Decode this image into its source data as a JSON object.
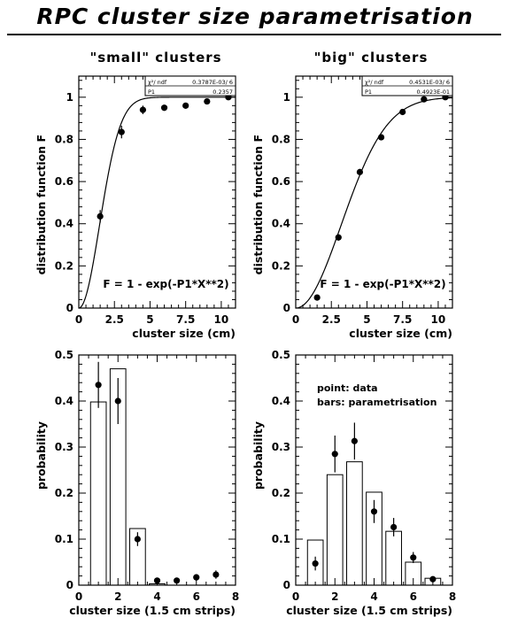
{
  "page": {
    "title": "RPC cluster size parametrisation"
  },
  "chart_data": [
    {
      "type": "scatter",
      "column_title": "\"small\" clusters",
      "xlabel": "cluster size (cm)",
      "ylabel": "distribution function F",
      "xlim": [
        0,
        11
      ],
      "ylim": [
        0,
        1.1
      ],
      "xticks": [
        0,
        2.5,
        5,
        7.5,
        10
      ],
      "xtick_labels": [
        "0",
        "2.5",
        "5",
        "7.5",
        "10"
      ],
      "yticks": [
        0,
        0.2,
        0.4,
        0.6,
        0.8,
        1
      ],
      "ytick_labels": [
        "0",
        "0.2",
        "0.4",
        "0.6",
        "0.8",
        "1"
      ],
      "formula": "F = 1 - exp(-P1*X**2)",
      "fit_P1": 0.2357,
      "stats": {
        "row1_label": "χ²/ ndf",
        "row1_value": "0.3787E-03/ 6",
        "row2_label": "P1",
        "row2_value": "0.2357"
      },
      "points": [
        {
          "x": 1.5,
          "y": 0.435,
          "err": 0.03
        },
        {
          "x": 3.0,
          "y": 0.835,
          "err": 0.03
        },
        {
          "x": 4.5,
          "y": 0.94,
          "err": 0.02
        },
        {
          "x": 6.0,
          "y": 0.95,
          "err": 0.012
        },
        {
          "x": 7.5,
          "y": 0.96,
          "err": 0.01
        },
        {
          "x": 9.0,
          "y": 0.98,
          "err": 0.01
        },
        {
          "x": 10.5,
          "y": 1.0,
          "err": 0.01
        }
      ]
    },
    {
      "type": "scatter",
      "column_title": "\"big\" clusters",
      "xlabel": "cluster size (cm)",
      "ylabel": "distribution function F",
      "xlim": [
        0,
        11
      ],
      "ylim": [
        0,
        1.1
      ],
      "xticks": [
        0,
        2.5,
        5,
        7.5,
        10
      ],
      "xtick_labels": [
        "0",
        "2.5",
        "5",
        "7.5",
        "10"
      ],
      "yticks": [
        0,
        0.2,
        0.4,
        0.6,
        0.8,
        1
      ],
      "ytick_labels": [
        "0",
        "0.2",
        "0.4",
        "0.6",
        "0.8",
        "1"
      ],
      "formula": "F = 1 - exp(-P1*X**2)",
      "fit_P1": 0.04923,
      "stats": {
        "row1_label": "χ²/ ndf",
        "row1_value": "0.4531E-03/ 6",
        "row2_label": "P1",
        "row2_value": "0.4923E-01"
      },
      "points": [
        {
          "x": 1.5,
          "y": 0.05,
          "err": 0.008
        },
        {
          "x": 3.0,
          "y": 0.335,
          "err": 0.015
        },
        {
          "x": 4.5,
          "y": 0.645,
          "err": 0.015
        },
        {
          "x": 6.0,
          "y": 0.81,
          "err": 0.012
        },
        {
          "x": 7.5,
          "y": 0.93,
          "err": 0.01
        },
        {
          "x": 9.0,
          "y": 0.99,
          "err": 0.008
        },
        {
          "x": 10.5,
          "y": 1.0,
          "err": 0.006
        }
      ]
    },
    {
      "type": "bar",
      "xlabel": "cluster size (1.5 cm strips)",
      "ylabel": "probability",
      "xlim": [
        0,
        8
      ],
      "ylim": [
        0,
        0.5
      ],
      "xticks": [
        0,
        2,
        4,
        6,
        8
      ],
      "xtick_labels": [
        "0",
        "2",
        "4",
        "6",
        "8"
      ],
      "yticks": [
        0,
        0.1,
        0.2,
        0.3,
        0.4,
        0.5
      ],
      "ytick_labels": [
        "0",
        "0.1",
        "0.2",
        "0.3",
        "0.4",
        "0.5"
      ],
      "categories": [
        1,
        2,
        3,
        4,
        5,
        6,
        7
      ],
      "bars": [
        0.398,
        0.47,
        0.123,
        0.003,
        0.0,
        0.0,
        0.0
      ],
      "points": [
        {
          "x": 1,
          "y": 0.435,
          "err": 0.05
        },
        {
          "x": 2,
          "y": 0.4,
          "err": 0.05
        },
        {
          "x": 3,
          "y": 0.1,
          "err": 0.015
        },
        {
          "x": 4,
          "y": 0.01,
          "err": 0.005
        },
        {
          "x": 5,
          "y": 0.01,
          "err": 0.005
        },
        {
          "x": 6,
          "y": 0.017,
          "err": 0.007
        },
        {
          "x": 7,
          "y": 0.023,
          "err": 0.009
        }
      ]
    },
    {
      "type": "bar",
      "xlabel": "cluster size (1.5 cm strips)",
      "ylabel": "probability",
      "xlim": [
        0,
        8
      ],
      "ylim": [
        0,
        0.5
      ],
      "xticks": [
        0,
        2,
        4,
        6,
        8
      ],
      "xtick_labels": [
        "0",
        "2",
        "4",
        "6",
        "8"
      ],
      "yticks": [
        0,
        0.1,
        0.2,
        0.3,
        0.4,
        0.5
      ],
      "ytick_labels": [
        "0",
        "0.1",
        "0.2",
        "0.3",
        "0.4",
        "0.5"
      ],
      "legend": [
        "point: data",
        "bars: parametrisation"
      ],
      "categories": [
        1,
        2,
        3,
        4,
        5,
        6,
        7
      ],
      "bars": [
        0.098,
        0.24,
        0.268,
        0.202,
        0.117,
        0.05,
        0.015
      ],
      "points": [
        {
          "x": 1,
          "y": 0.047,
          "err": 0.015
        },
        {
          "x": 2,
          "y": 0.285,
          "err": 0.04
        },
        {
          "x": 3,
          "y": 0.313,
          "err": 0.04
        },
        {
          "x": 4,
          "y": 0.16,
          "err": 0.025
        },
        {
          "x": 5,
          "y": 0.126,
          "err": 0.02
        },
        {
          "x": 6,
          "y": 0.06,
          "err": 0.012
        },
        {
          "x": 7,
          "y": 0.013,
          "err": 0.005
        }
      ]
    }
  ]
}
